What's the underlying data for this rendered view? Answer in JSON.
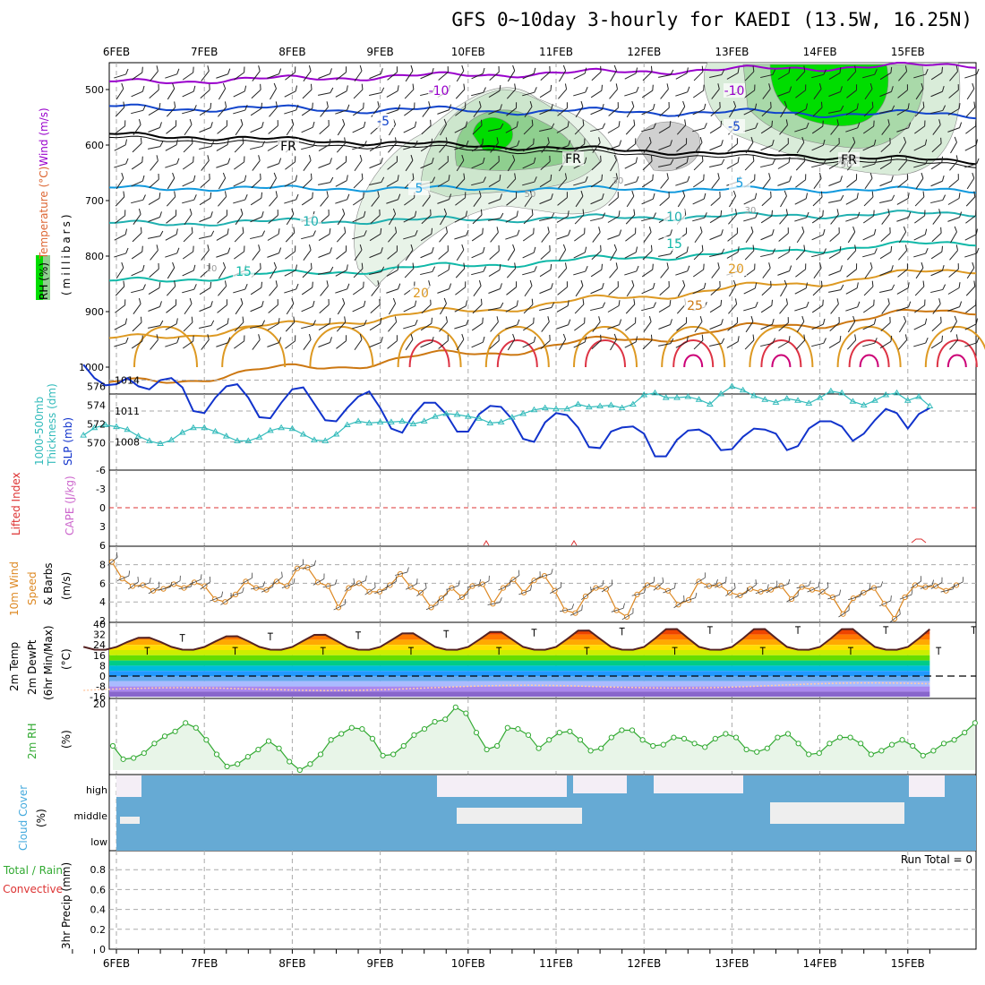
{
  "title": "GFS 0~10day 3-hourly for KAEDI (13.5W, 16.25N)",
  "dates": [
    "6FEB",
    "7FEB",
    "8FEB",
    "9FEB",
    "10FEB",
    "11FEB",
    "12FEB",
    "13FEB",
    "14FEB",
    "15FEB"
  ],
  "colors": {
    "rh_green": "#00dd00",
    "rh_gray": "#999999",
    "temp_violet": "#9900cc",
    "temp_blue": "#1144cc",
    "temp_cyan": "#1199dd",
    "temp_teal": "#10b8a8",
    "temp_orange": "#dd9922",
    "temp_red": "#dd3344",
    "slp": "#1133cc",
    "thickness": "#33bbbb",
    "lifted": "#dd3333",
    "wind": "#dd8822",
    "rh2m": "#33aa33",
    "cloud": "#66aad4",
    "cloud_gap": "#f4eef6"
  },
  "chart_data": [
    {
      "type": "line",
      "name": "upper_air",
      "ylabel": [
        "RH (%)",
        "Temperature (°C)",
        "Wind (m/s)",
        "(millibars)"
      ],
      "y_ticks": [
        "500",
        "600",
        "700",
        "800",
        "900",
        "1000"
      ],
      "isotherm_labels": [
        "-10",
        "-10",
        "-5",
        "-5",
        "FR",
        "FR",
        "FR",
        "5",
        "5",
        "10",
        "10",
        "15",
        "15",
        "20",
        "20",
        "25"
      ],
      "rh_labels": [
        "10",
        "30",
        "50",
        "30",
        "90"
      ]
    },
    {
      "type": "line",
      "name": "slp_thickness",
      "ylabel_left": [
        "1000-500mb",
        "Thickness (dm)"
      ],
      "ylabel_right": "SLP (mb)",
      "y_ticks_left": [
        "576",
        "574",
        "572",
        "570"
      ],
      "y_ticks_right": [
        "1014",
        "1011",
        "1008"
      ],
      "x": [
        "5FEB 15Z",
        "5FEB 18Z",
        "5FEB 21Z",
        "6FEB 00Z",
        "6FEB 03Z",
        "6FEB 06Z",
        "6FEB 09Z",
        "6FEB 12Z",
        "6FEB 15Z",
        "6FEB 18Z",
        "6FEB 21Z",
        "7FEB 00Z",
        "7FEB 03Z",
        "7FEB 06Z",
        "7FEB 09Z",
        "7FEB 12Z",
        "7FEB 15Z",
        "7FEB 18Z",
        "7FEB 21Z",
        "8FEB 00Z",
        "8FEB 03Z",
        "8FEB 06Z",
        "8FEB 09Z",
        "8FEB 12Z",
        "8FEB 15Z",
        "8FEB 18Z",
        "8FEB 21Z",
        "9FEB 00Z",
        "9FEB 03Z",
        "9FEB 06Z",
        "9FEB 09Z",
        "9FEB 12Z",
        "9FEB 15Z",
        "9FEB 18Z",
        "9FEB 21Z",
        "10FEB 00Z",
        "10FEB 03Z",
        "10FEB 06Z",
        "10FEB 09Z",
        "10FEB 12Z",
        "10FEB 15Z",
        "10FEB 18Z",
        "10FEB 21Z",
        "11FEB 00Z",
        "11FEB 03Z",
        "11FEB 06Z",
        "11FEB 09Z",
        "11FEB 12Z",
        "11FEB 15Z",
        "11FEB 18Z",
        "11FEB 21Z",
        "12FEB 00Z",
        "12FEB 03Z",
        "12FEB 06Z",
        "12FEB 09Z",
        "12FEB 12Z",
        "12FEB 15Z",
        "12FEB 18Z",
        "12FEB 21Z",
        "13FEB 00Z",
        "13FEB 03Z",
        "13FEB 06Z",
        "13FEB 09Z",
        "13FEB 12Z",
        "13FEB 15Z",
        "13FEB 18Z",
        "13FEB 21Z",
        "14FEB 00Z",
        "14FEB 03Z",
        "14FEB 06Z",
        "14FEB 09Z",
        "14FEB 12Z",
        "14FEB 15Z",
        "14FEB 18Z",
        "14FEB 21Z",
        "15FEB 00Z",
        "15FEB 03Z",
        "15FEB 06Z"
      ],
      "series": [
        {
          "name": "SLP (mb)",
          "values": [
            1015.5,
            1014.2,
            1013.5,
            1013.6,
            1014.2,
            1013.4,
            1013.1,
            1014.0,
            1014.2,
            1013.3,
            1011.0,
            1010.8,
            1012.3,
            1013.4,
            1013.6,
            1012.3,
            1010.4,
            1010.3,
            1011.8,
            1013.1,
            1013.3,
            1011.7,
            1010.1,
            1010.0,
            1011.3,
            1012.4,
            1012.9,
            1011.3,
            1009.3,
            1008.9,
            1010.6,
            1011.8,
            1011.8,
            1010.7,
            1009.0,
            1009.0,
            1010.7,
            1011.5,
            1011.4,
            1010.2,
            1008.3,
            1008.0,
            1009.9,
            1010.8,
            1010.6,
            1009.4,
            1007.5,
            1007.4,
            1009.0,
            1009.4,
            1009.5,
            1008.8,
            1006.6,
            1006.6,
            1008.2,
            1009.1,
            1009.2,
            1008.6,
            1007.2,
            1007.3,
            1008.5,
            1009.3,
            1009.2,
            1008.8,
            1007.2,
            1007.6,
            1009.3,
            1010.0,
            1010.0,
            1009.5,
            1008.1,
            1008.8,
            1010.1,
            1011.2,
            1010.8,
            1009.3,
            1010.7,
            1011.3
          ]
        },
        {
          "name": "1000-500mb Thickness (dm)",
          "values": [
            570.8,
            571.6,
            571.9,
            571.7,
            571.4,
            570.7,
            570.2,
            569.9,
            570.3,
            571.1,
            571.6,
            571.6,
            571.2,
            570.7,
            570.2,
            570.2,
            570.6,
            571.3,
            571.6,
            571.5,
            570.9,
            570.3,
            570.2,
            570.9,
            571.9,
            572.3,
            572.1,
            572.2,
            572.2,
            572.3,
            572.0,
            572.3,
            572.8,
            573.1,
            573.0,
            572.8,
            572.6,
            572.1,
            572.2,
            572.7,
            573.1,
            573.5,
            573.7,
            573.6,
            573.6,
            574.1,
            573.8,
            573.9,
            574.0,
            573.7,
            574.1,
            575.1,
            575.3,
            574.8,
            574.8,
            574.9,
            574.6,
            574.1,
            575.2,
            576.0,
            575.6,
            575.0,
            574.6,
            574.3,
            574.7,
            574.5,
            574.2,
            574.8,
            575.5,
            575.3,
            574.4,
            574.0,
            574.5,
            575.1,
            575.3,
            574.5,
            574.9,
            573.9
          ]
        }
      ]
    },
    {
      "type": "line",
      "name": "lifted_cape",
      "ylabel": [
        "Lifted Index",
        "CAPE (J/kg)"
      ],
      "y_ticks": [
        "-6",
        "-3",
        "0",
        "3",
        "6"
      ],
      "series": [
        {
          "name": "Lifted Index",
          "values": []
        }
      ]
    },
    {
      "type": "line",
      "name": "wind10m",
      "ylabel": [
        "10m Wind",
        "Speed",
        "& Barbs",
        "(m/s)"
      ],
      "y_ticks": [
        "8",
        "6",
        "4",
        "2"
      ],
      "ylim": [
        2,
        8.5
      ],
      "series": [
        {
          "name": "10m Wind Speed (m/s)",
          "values": [
            8.3,
            6.5,
            5.7,
            5.8,
            5.2,
            5.4,
            5.9,
            5.5,
            6.1,
            5.7,
            4.3,
            4.0,
            4.8,
            6.2,
            5.5,
            5.3,
            6.2,
            5.7,
            7.6,
            7.7,
            6.1,
            5.7,
            3.4,
            5.5,
            6.0,
            5.1,
            5.1,
            5.8,
            7.0,
            5.6,
            5.0,
            3.4,
            4.4,
            5.5,
            4.5,
            5.7,
            5.9,
            3.8,
            5.5,
            6.4,
            5.0,
            6.3,
            6.8,
            5.2,
            3.1,
            2.8,
            4.6,
            5.5,
            5.4,
            3.1,
            2.4,
            4.8,
            5.8,
            5.6,
            5.2,
            3.7,
            4.2,
            6.2,
            5.7,
            5.8,
            5.0,
            4.7,
            5.4,
            5.1,
            5.3,
            5.7,
            4.3,
            5.6,
            5.3,
            5.1,
            4.5,
            2.7,
            4.4,
            5.0,
            5.5,
            3.8,
            2.2,
            4.5,
            5.8,
            5.6,
            5.7,
            5.2,
            5.8
          ]
        }
      ]
    },
    {
      "type": "area",
      "name": "temp2m",
      "ylabel": [
        "2m Temp",
        "2m DewPt",
        "(6hr Min/Max)",
        "(°C)"
      ],
      "y_ticks": [
        "40",
        "32",
        "24",
        "16",
        "8",
        "0",
        "-8",
        "-16"
      ],
      "ylim": [
        -16,
        40
      ]
    },
    {
      "type": "line",
      "name": "rh2m",
      "ylabel": [
        "2m RH",
        "(%)"
      ],
      "y_ticks": [
        "20"
      ],
      "series": [
        {
          "name": "2m RH (%)",
          "values": [
            33,
            22,
            23,
            27,
            35,
            41,
            45,
            52,
            48,
            38,
            26,
            16,
            18,
            24,
            30,
            37,
            31,
            20,
            13,
            18,
            26,
            38,
            43,
            48,
            47,
            39,
            25,
            26,
            33,
            42,
            47,
            53,
            55,
            65,
            60,
            44,
            30,
            33,
            48,
            47,
            42,
            31,
            38,
            44,
            45,
            38,
            29,
            31,
            40,
            46,
            46,
            38,
            33,
            34,
            40,
            39,
            35,
            32,
            39,
            43,
            40,
            30,
            28,
            31,
            40,
            43,
            35,
            26,
            27,
            35,
            40,
            40,
            35,
            26,
            29,
            34,
            38,
            33,
            25,
            29,
            35,
            38,
            44,
            52
          ]
        }
      ]
    },
    {
      "type": "area",
      "name": "cloud_cover",
      "ylabel": [
        "Cloud Cover",
        "(%)"
      ],
      "y_ticks": [
        "high",
        "middle",
        "low"
      ]
    },
    {
      "type": "bar",
      "name": "precip",
      "ylabel": [
        "Total / Rain",
        "Convective",
        "3hr Precip (mm)"
      ],
      "y_ticks": [
        "0.8",
        "0.6",
        "0.4",
        "0.2",
        "0"
      ],
      "ylim": [
        0,
        0.9
      ],
      "run_total": "Run Total = 0"
    }
  ]
}
